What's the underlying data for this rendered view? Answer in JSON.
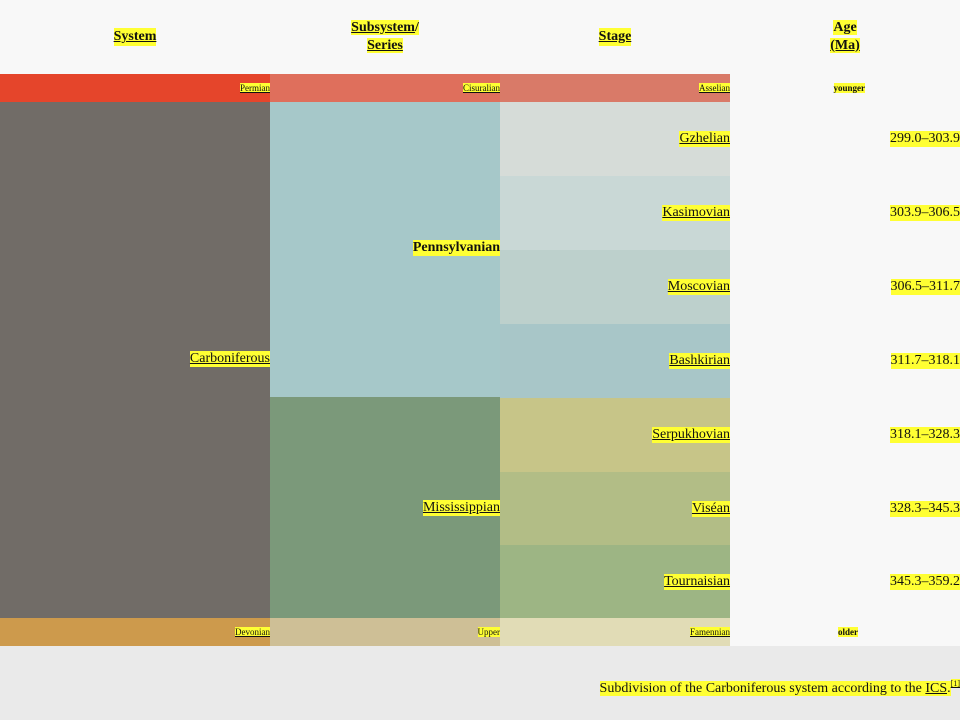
{
  "header": {
    "system": "System",
    "subsystem_line1": "Subsystem",
    "subsystem_slash": "/",
    "subsystem_line2": "Series",
    "stage": "Stage",
    "age_line1": "Age",
    "age_line2": "(Ma)"
  },
  "top_row": {
    "system": "Permian",
    "series": "Cisuralian",
    "stage": "Asselian",
    "age": "younger",
    "colors": {
      "system": "#e5452b",
      "series": "#df6f5c",
      "stage": "#d97a68"
    }
  },
  "main": {
    "system": {
      "label": "Carboniferous",
      "color": "#716c67"
    },
    "subsystems": [
      {
        "label": "Pennsylvanian",
        "color": "#a6c8c9"
      },
      {
        "label": "Mississippian",
        "color": "#7b997a"
      }
    ],
    "stages": [
      {
        "label": "Gzhelian",
        "age": "299.0–303.9",
        "color": "#d6dcd8"
      },
      {
        "label": "Kasimovian",
        "age": "303.9–306.5",
        "color": "#c9d8d6"
      },
      {
        "label": "Moscovian",
        "age": "306.5–311.7",
        "color": "#bdd0cc"
      },
      {
        "label": "Bashkirian",
        "age": "311.7–318.1",
        "color": "#a8c6c8"
      },
      {
        "label": "Serpukhovian",
        "age": "318.1–328.3",
        "color": "#c7c588"
      },
      {
        "label": "Viséan",
        "age": "328.3–345.3",
        "color": "#b2bd86"
      },
      {
        "label": "Tournaisian",
        "age": "345.3–359.2",
        "color": "#9db584"
      }
    ]
  },
  "bottom_row": {
    "system": "Devonian",
    "series": "Upper",
    "stage": "Famennian",
    "age": "older",
    "colors": {
      "system": "#cd9a4c",
      "series": "#cebf96",
      "stage": "#e1dcb6"
    }
  },
  "caption": {
    "text": "Subdivision of the Carboniferous system according to the ",
    "link": "ICS",
    "period": ".",
    "ref": "[1]"
  }
}
